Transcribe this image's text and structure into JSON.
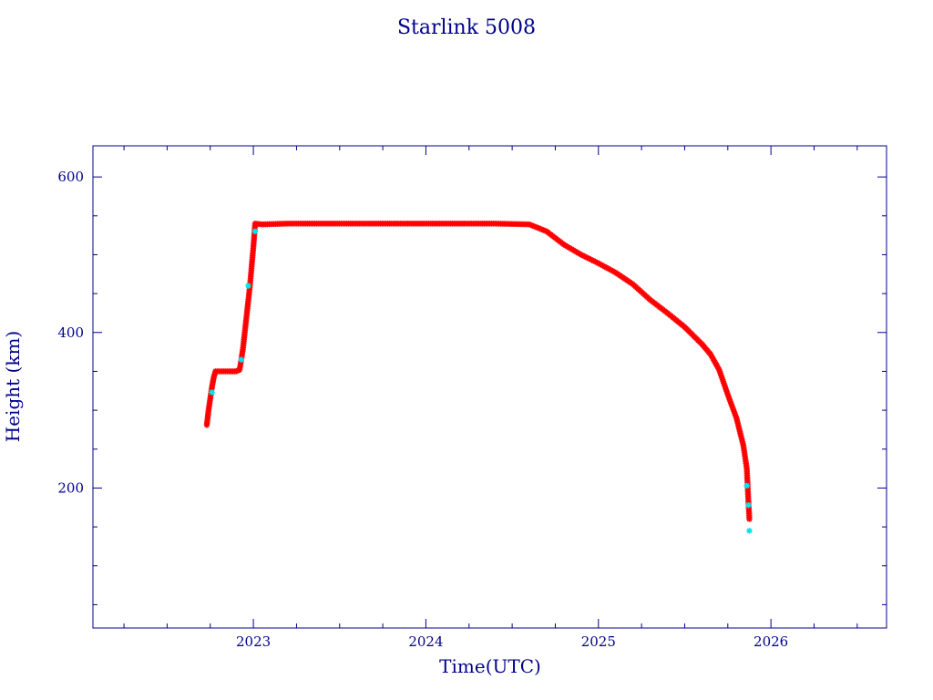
{
  "chart_data": {
    "type": "scatter",
    "title": "Starlink 5008",
    "xlabel": "Time(UTC)",
    "ylabel": "Height (km)",
    "xlim": [
      2022.07,
      2026.67
    ],
    "ylim": [
      20,
      640
    ],
    "x_ticks": [
      2023,
      2024,
      2025,
      2026
    ],
    "y_ticks": [
      200,
      400,
      600
    ],
    "grid": false,
    "colors": {
      "axis": "#00008b",
      "main_series": "#ff0000",
      "secondary_series": "#00e5ee",
      "text": "#00008b"
    },
    "series": [
      {
        "values_xy": [
          [
            2022.73,
            281
          ],
          [
            2022.74,
            300
          ],
          [
            2022.75,
            315
          ],
          [
            2022.76,
            330
          ],
          [
            2022.77,
            342
          ],
          [
            2022.78,
            350
          ],
          [
            2022.82,
            350
          ],
          [
            2022.86,
            350
          ],
          [
            2022.9,
            350
          ],
          [
            2022.92,
            352
          ],
          [
            2022.93,
            365
          ],
          [
            2022.94,
            380
          ],
          [
            2022.95,
            400
          ],
          [
            2022.96,
            420
          ],
          [
            2022.97,
            440
          ],
          [
            2022.98,
            460
          ],
          [
            2022.99,
            485
          ],
          [
            2023.0,
            510
          ],
          [
            2023.01,
            540
          ],
          [
            2023.05,
            539
          ],
          [
            2023.2,
            540
          ],
          [
            2023.5,
            540
          ],
          [
            2023.8,
            540
          ],
          [
            2024.1,
            540
          ],
          [
            2024.4,
            540
          ],
          [
            2024.6,
            539
          ],
          [
            2024.7,
            530
          ],
          [
            2024.8,
            513
          ],
          [
            2024.9,
            500
          ],
          [
            2025.0,
            489
          ],
          [
            2025.1,
            477
          ],
          [
            2025.2,
            462
          ],
          [
            2025.3,
            442
          ],
          [
            2025.4,
            425
          ],
          [
            2025.5,
            407
          ],
          [
            2025.6,
            385
          ],
          [
            2025.65,
            372
          ],
          [
            2025.7,
            352
          ],
          [
            2025.75,
            320
          ],
          [
            2025.8,
            290
          ],
          [
            2025.84,
            255
          ],
          [
            2025.86,
            225
          ],
          [
            2025.87,
            180
          ],
          [
            2025.875,
            160
          ]
        ]
      },
      {
        "values_xy": [
          [
            2022.76,
            323
          ],
          [
            2022.93,
            365
          ],
          [
            2022.97,
            460
          ],
          [
            2023.01,
            530
          ],
          [
            2025.86,
            203
          ],
          [
            2025.87,
            178
          ],
          [
            2025.875,
            145
          ]
        ]
      }
    ]
  }
}
